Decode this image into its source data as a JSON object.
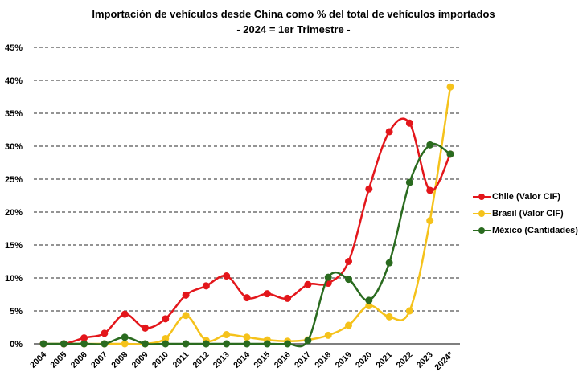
{
  "chart_data": {
    "type": "line",
    "title": "Importación de vehículos desde China como % del total de vehículos importados",
    "subtitle": "- 2024 = 1er Trimestre -",
    "categories": [
      "2004",
      "2005",
      "2006",
      "2007",
      "2008",
      "2009",
      "2010",
      "2011",
      "2012",
      "2013",
      "2014",
      "2015",
      "2016",
      "2017",
      "2018",
      "2019",
      "2020",
      "2021",
      "2022",
      "2023",
      "2024*"
    ],
    "ylim": [
      0,
      45
    ],
    "yticks": [
      "0%",
      "5%",
      "10%",
      "15%",
      "20%",
      "25%",
      "30%",
      "35%",
      "40%",
      "45%"
    ],
    "grid": "horizontal dashed",
    "legend_position": "right",
    "series": [
      {
        "name": "Chile (Valor CIF)",
        "color": "#e3161b",
        "values": [
          0,
          0,
          0.9,
          1.6,
          4.5,
          2.4,
          3.8,
          7.4,
          8.8,
          10.3,
          7.0,
          7.6,
          6.9,
          9.0,
          9.2,
          12.5,
          23.5,
          32.2,
          33.5,
          23.3,
          28.8
        ]
      },
      {
        "name": "Brasil (Valor CIF)",
        "color": "#f5c21b",
        "values": [
          0,
          0,
          0,
          0,
          0,
          0,
          0.8,
          4.3,
          0.5,
          1.4,
          1.0,
          0.6,
          0.4,
          0.6,
          1.3,
          2.8,
          5.8,
          4.1,
          5.0,
          18.7,
          39.0
        ]
      },
      {
        "name": "México (Cantidades)",
        "color": "#2a6b1f",
        "values": [
          0,
          0,
          0,
          0,
          1.0,
          0,
          0,
          0,
          0,
          0,
          0,
          0,
          0,
          0.5,
          10.1,
          9.8,
          6.6,
          12.3,
          24.5,
          30.2,
          28.8
        ]
      }
    ]
  }
}
